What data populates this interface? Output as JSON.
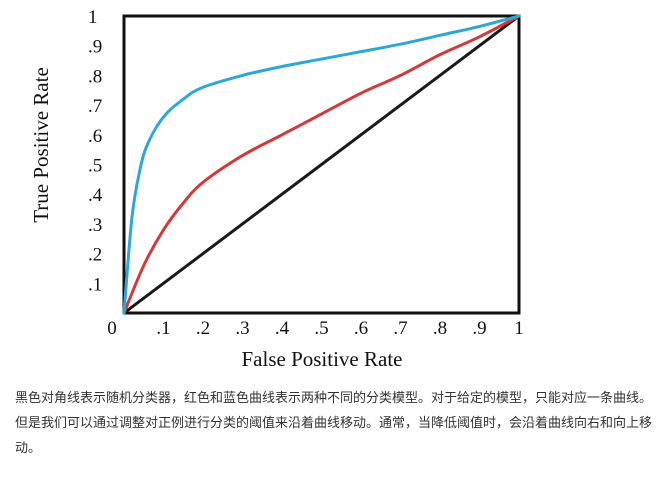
{
  "chart_data": {
    "type": "line",
    "xlabel": "False Positive Rate",
    "ylabel": "True Positive Rate",
    "xlim": [
      0,
      1
    ],
    "ylim": [
      0,
      1
    ],
    "x_ticks": [
      "0",
      ".1",
      ".2",
      ".3",
      ".4",
      ".5",
      ".6",
      ".7",
      ".8",
      ".9",
      "1"
    ],
    "y_ticks": [
      ".1",
      ".2",
      ".3",
      ".4",
      ".5",
      ".6",
      ".7",
      ".8",
      ".9",
      "1"
    ],
    "grid": false,
    "series": [
      {
        "color": "#1a1a1a",
        "x": [
          0,
          1
        ],
        "y": [
          0,
          1
        ]
      },
      {
        "color": "#d23a3a",
        "x": [
          0,
          0.05,
          0.1,
          0.15,
          0.2,
          0.3,
          0.4,
          0.5,
          0.6,
          0.7,
          0.8,
          0.9,
          1.0
        ],
        "y": [
          0,
          0.16,
          0.28,
          0.37,
          0.44,
          0.53,
          0.6,
          0.67,
          0.74,
          0.8,
          0.87,
          0.93,
          1.0
        ]
      },
      {
        "color": "#2fa6d8",
        "x": [
          0,
          0.02,
          0.04,
          0.06,
          0.1,
          0.15,
          0.2,
          0.3,
          0.4,
          0.5,
          0.6,
          0.7,
          0.8,
          0.9,
          1.0
        ],
        "y": [
          0,
          0.32,
          0.48,
          0.57,
          0.66,
          0.72,
          0.76,
          0.8,
          0.83,
          0.855,
          0.88,
          0.905,
          0.935,
          0.965,
          1.0
        ]
      }
    ]
  },
  "caption": "黑色对角线表示随机分类器，红色和蓝色曲线表示两种不同的分类模型。对于给定的模型，只能对应一条曲线。但是我们可以通过调整对正例进行分类的阈值来沿着曲线移动。通常，当降低阈值时，会沿着曲线向右和向上移动。"
}
